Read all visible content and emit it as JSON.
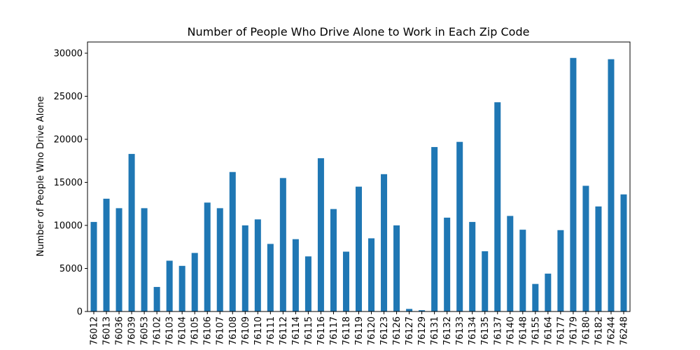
{
  "chart_data": {
    "type": "bar",
    "title": "Number of People Who Drive Alone to Work in Each Zip Code",
    "xlabel": "",
    "ylabel": "Number of People Who Drive Alone",
    "ylim": [
      0,
      31300
    ],
    "yticks": [
      0,
      5000,
      10000,
      15000,
      20000,
      25000,
      30000
    ],
    "grid": false,
    "bar_color": "#1f77b4",
    "categories": [
      "76012",
      "76013",
      "76036",
      "76039",
      "76053",
      "76102",
      "76103",
      "76104",
      "76105",
      "76106",
      "76107",
      "76108",
      "76109",
      "76110",
      "76111",
      "76112",
      "76114",
      "76115",
      "76116",
      "76117",
      "76118",
      "76119",
      "76120",
      "76123",
      "76126",
      "76127",
      "76129",
      "76131",
      "76132",
      "76133",
      "76134",
      "76135",
      "76137",
      "76140",
      "76148",
      "76155",
      "76164",
      "76177",
      "76179",
      "76180",
      "76182",
      "76244",
      "76248"
    ],
    "values": [
      10400,
      13100,
      12000,
      18300,
      12000,
      2850,
      5900,
      5300,
      6800,
      12650,
      12000,
      16200,
      10000,
      10700,
      7850,
      15500,
      8400,
      6400,
      17800,
      11900,
      6950,
      14500,
      8500,
      15950,
      10000,
      300,
      150,
      19100,
      10900,
      19700,
      10400,
      7000,
      24300,
      11100,
      9500,
      3200,
      4400,
      9450,
      29450,
      14600,
      12200,
      29300,
      13600
    ]
  }
}
